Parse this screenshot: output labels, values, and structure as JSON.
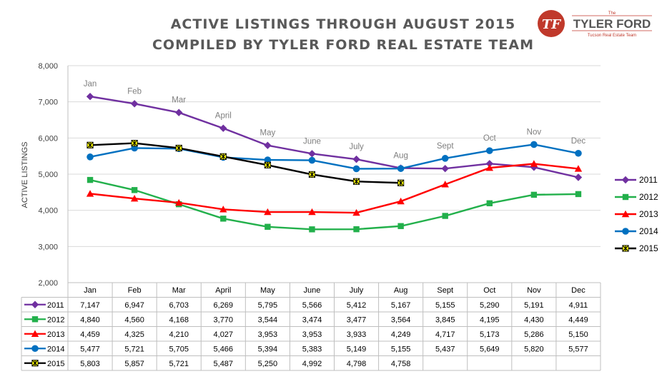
{
  "title_line1": "ACTIVE LISTINGS THROUGH AUGUST 2015",
  "title_line2": "COMPILED BY TYLER FORD REAL ESTATE TEAM",
  "logo": {
    "small": "The",
    "name": "TYLER FORD",
    "sub": "Tucson Real Estate Team",
    "mark": "TF"
  },
  "chart_data": {
    "type": "line",
    "title": "ACTIVE LISTINGS THROUGH AUGUST 2015",
    "subtitle": "COMPILED BY TYLER FORD REAL ESTATE TEAM",
    "ylabel": "ACTIVE LISTINGS",
    "xlabel": "",
    "ylim": [
      2000,
      8000
    ],
    "yticks": [
      "2,000",
      "3,000",
      "4,000",
      "5,000",
      "6,000",
      "7,000",
      "8,000"
    ],
    "categories": [
      "Jan",
      "Feb",
      "Mar",
      "April",
      "May",
      "June",
      "July",
      "Aug",
      "Sept",
      "Oct",
      "Nov",
      "Dec"
    ],
    "grid": true,
    "legend": "right",
    "data_table": true,
    "series": [
      {
        "name": "2011",
        "color": "#7030a0",
        "marker": "diamond",
        "values": [
          7147,
          6947,
          6703,
          6269,
          5795,
          5566,
          5412,
          5167,
          5155,
          5290,
          5191,
          4911
        ]
      },
      {
        "name": "2012",
        "color": "#22b04b",
        "marker": "square",
        "values": [
          4840,
          4560,
          4168,
          3770,
          3544,
          3474,
          3477,
          3564,
          3845,
          4195,
          4430,
          4449
        ]
      },
      {
        "name": "2013",
        "color": "#ff0000",
        "marker": "triangle",
        "values": [
          4459,
          4325,
          4210,
          4027,
          3953,
          3953,
          3933,
          4249,
          4717,
          5173,
          5286,
          5150
        ]
      },
      {
        "name": "2014",
        "color": "#0070c0",
        "marker": "circle",
        "values": [
          5477,
          5721,
          5705,
          5466,
          5394,
          5383,
          5149,
          5155,
          5437,
          5649,
          5820,
          5577
        ]
      },
      {
        "name": "2015",
        "color": "#000000",
        "marker": "star",
        "values": [
          5803,
          5857,
          5721,
          5487,
          5250,
          4992,
          4798,
          4758,
          null,
          null,
          null,
          null
        ]
      }
    ],
    "table_values": [
      [
        "7,147",
        "6,947",
        "6,703",
        "6,269",
        "5,795",
        "5,566",
        "5,412",
        "5,167",
        "5,155",
        "5,290",
        "5,191",
        "4,911"
      ],
      [
        "4,840",
        "4,560",
        "4,168",
        "3,770",
        "3,544",
        "3,474",
        "3,477",
        "3,564",
        "3,845",
        "4,195",
        "4,430",
        "4,449"
      ],
      [
        "4,459",
        "4,325",
        "4,210",
        "4,027",
        "3,953",
        "3,953",
        "3,933",
        "4,249",
        "4,717",
        "5,173",
        "5,286",
        "5,150"
      ],
      [
        "5,477",
        "5,721",
        "5,705",
        "5,466",
        "5,394",
        "5,383",
        "5,149",
        "5,155",
        "5,437",
        "5,649",
        "5,820",
        "5,577"
      ],
      [
        "5,803",
        "5,857",
        "5,721",
        "5,487",
        "5,250",
        "4,992",
        "4,798",
        "4,758",
        "",
        "",
        "",
        ""
      ]
    ]
  }
}
